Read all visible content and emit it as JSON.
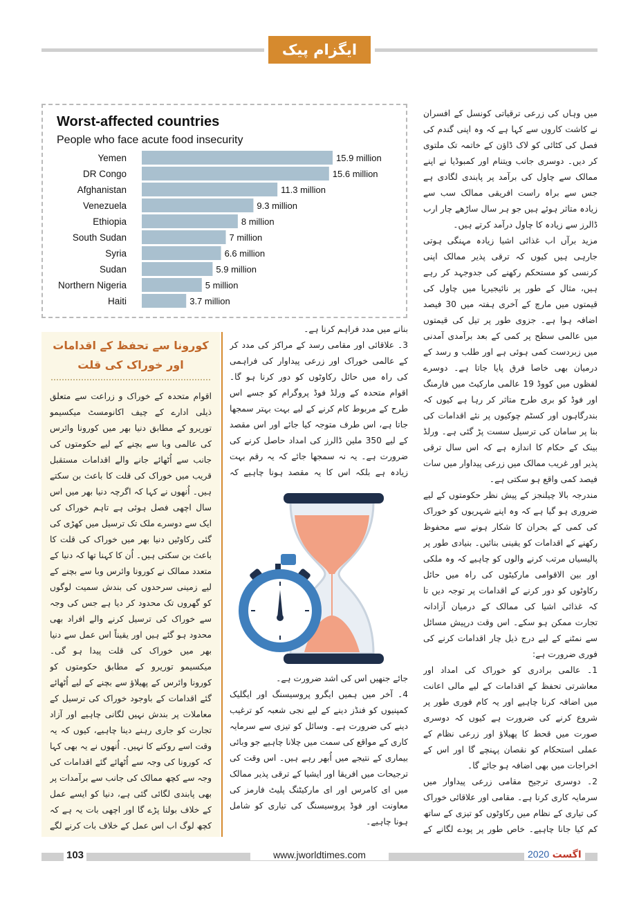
{
  "header": {
    "title": "ایگزام پیک"
  },
  "chart_data": {
    "type": "bar",
    "orientation": "horizontal",
    "title": "Worst-affected countries",
    "subtitle": "People who face acute food insecurity",
    "categories": [
      "Yemen",
      "DR Congo",
      "Afghanistan",
      "Venezuela",
      "Ethiopia",
      "South Sudan",
      "Syria",
      "Sudan",
      "Northern Nigeria",
      "Haiti"
    ],
    "values": [
      15.9,
      15.6,
      11.3,
      9.3,
      8,
      7,
      6.6,
      5.9,
      5,
      3.7
    ],
    "value_labels": [
      "15.9 million",
      "15.6 million",
      "11.3 million",
      "9.3 million",
      "8 million",
      "7 million",
      "6.6 million",
      "5.9 million",
      "5 million",
      "3.7 million"
    ],
    "color": "#a9c0cf"
  },
  "columns": {
    "right": [
      "میں وہاں کی زرعی ترقیاتی کونسل کے افسران نے کاشت کاروں سے کہا ہے کہ وہ اپنی گندم کی فصل کی کٹائی کو لاک ڈاؤن کے خاتمہ تک ملتوی کر دیں۔ دوسری جانب ویتنام اور کمبوڈیا نے اپنے ممالک سے چاول کی برآمد پر پابندی لگادی ہے جس سے براہ راست افریقی ممالک سب سے زیادہ متاثر ہوئے ہیں جو ہر سال ساڑھے چار ارب ڈالرز سے زیادہ کا چاول درآمد کرتے ہیں۔",
      "مزید برآں اب غذائی اشیا زیادہ مہنگی ہوتی جارہی ہیں کیوں کہ ترقی پذیر ممالک اپنی کرنسی کو مستحکم رکھنے کی جدوجہد کر رہے ہیں، مثال کے طور پر نائیجیریا میں چاول کی قیمتوں میں مارچ کے آخری ہفتہ میں 30 فیصد اضافہ ہوا ہے۔ جزوی طور پر تیل کی قیمتوں میں عالمی سطح پر کمی کے بعد برآمدی آمدنی میں زبردست کمی ہوئی ہے اور طلب و رسد کے درمیان بھی خاصا فرق پایا جاتا ہے۔ دوسرے لفظوں میں کووڈ 19 عالمی مارکیٹ میں فارمنگ اور فوڈ کو بری طرح متاثر کر رہا ہے کیوں کہ بندرگاہوں اور کسٹم چوکیوں پر نئے اقدامات کی بنا پر سامان کی ترسیل سست پڑ گئی ہے۔ ورلڈ بینک کے حکام کا اندازہ ہے کہ اس سال ترقی پذیر اور غریب ممالک میں زرعی پیداوار میں سات فیصد کمی واقع ہو سکتی ہے۔",
      "مندرجہ بالا چیلنجز کے پیش نظر حکومتوں کے لیے ضروری ہو گیا ہے کہ وہ اپنے شہریوں کو خوراک کی کمی کے بحران کا شکار ہونے سے محفوظ رکھنے کے اقدامات کو یقینی بنائیں۔ بنیادی طور پر پالیسیاں مرتب کرنے والوں کو چاہیے کہ وہ ملکی اور بین الاقوامی مارکیٹوں کی راہ میں حائل رکاوٹوں کو دور کرنے کے اقدامات پر توجہ دیں تا کہ غذائی اشیا کی ممالک کے درمیان آزادانہ تجارت ممکن ہو سکے۔ اس وقت درپیش مسائل سے نمٹنے کے لیے درج ذیل چار اقدامات کرنے کی فوری ضرورت ہے:",
      "1۔ عالمی برادری کو خوراک کی امداد اور معاشرتی تحفظ کے اقدامات کے لیے مالی اعانت میں اضافہ کرنا چاہیے اور یہ کام فوری طور پر شروع کرنے کی ضرورت ہے کیوں کہ دوسری صورت میں قحط کا پھیلاؤ اور زرعی نظام کے عملی استحکام کو نقصان پہنچے گا اور اس کے اخراجات میں بھی اضافہ ہو جائے گا۔",
      "2۔ دوسری ترجیح مقامی زرعی پیداوار میں سرمایہ کاری کرنا ہے۔ مقامی اور علاقائی خوراک کی تیاری کے نظام میں رکاوٹوں کو تیزی کے ساتھ کم کیا جانا چاہیے۔ خاص طور پر پودے لگانے کے موسم میں کھاد اور بیج کی تقسیم بہت ضروری ہے۔ اس شعبے میں سرمایہ کاری کا مقصد غریب ممالک کو تین ماہ کے لیے سٹریٹجک فوڈ سٹورز"
    ],
    "middle_top": [
      "بنانے میں مدد فراہم کرنا ہے۔",
      "3۔ علاقائی اور مقامی رسد کے مراکز کی مدد کر کے عالمی خوراک اور زرعی پیداوار کی فراہمی کی راہ میں حائل رکاوٹوں کو دور کرنا ہو گا۔ اقوام متحدہ کے ورلڈ فوڈ پروگرام کو جسے اس طرح کے مربوط کام کرنے کے لیے بہت بہتر سمجھا جاتا ہے، اس طرف متوجہ کیا جائے اور اس مقصد کے لیے 350 ملین ڈالرز کی امداد حاصل کرنے کی ضرورت ہے۔ یہ نہ سمجھا جائے کہ یہ رقم بہت زیادہ ہے بلکہ اس کا یہ مقصد ہونا چاہیے کہ خوراک جلد از جلد انھیں فراہم کی"
    ],
    "middle_bottom": [
      "جائے جنھیں اس کی اشد ضرورت ہے۔",
      "4۔ آخر میں ہمیں ایگرو پروسیسنگ اور ایگلیک کمپنیوں کو فنڈز دینے کے لیے نجی شعبہ کو ترغیب دینے کی ضرورت ہے۔ وسائل کو تیزی سے سرمایہ کاری کے مواقع کی سمت میں چلانا چاہیے جو وبائی بیماری کے نتیجے میں اُبھر رہے ہیں۔ اس وقت کی ترجیحات میں افریقا اور ایشیا کے ترقی پذیر ممالک میں ای کامرس اور ای مارکیٹنگ پلیٹ فارمز کی معاونت اور فوڈ پروسیسنگ کی تیاری کو شامل ہونا چاہیے۔"
    ]
  },
  "sidebar": {
    "title": [
      "کورونا سے تحفظ کے اقدامات",
      "اور خوراک کی قلت"
    ],
    "body": "اقوام متحدہ کے خوراک و زراعت سے متعلق ذیلی ادارے کے چیف اکانومسٹ میکسیمو توریرو کے مطابق دنیا بھر میں کورونا وائرس کی عالمی وبا سے بچنے کے لیے حکومتوں کی جانب سے اُٹھائے جانے والے اقدامات مستقبل قریب میں خوراک کی قلت کا باعث بن سکتے ہیں۔ اُنھوں نے کہا کہ اگرچہ دنیا بھر میں اس سال اچھی فصل ہوئی ہے تاہم خوراک کی ایک سے دوسرے ملک تک ترسیل میں کھڑی کی گئی رکاوٹیں دنیا بھر میں خوراک کی قلت کا باعث بن سکتی ہیں۔ اُن کا کہنا تھا کہ دنیا کے متعدد ممالک نے کورونا وائرس وبا سے بچنے کے لیے زمینی سرحدوں کی بندش سمیت لوگوں کو گھروں تک محدود کر دیا ہے جس کی وجہ سے خوراک کی ترسیل کرنے والے افراد بھی محدود ہو گئے ہیں اور یقیناً اس عمل سے دنیا بھر میں خوراک کی قلت پیدا ہو گی۔ میکسیمو توریرو کے مطابق حکومتوں کو کورونا وائرس کے پھیلاؤ سے بچنے کے لیے اُٹھائے گئے اقدامات کے باوجود خوراک کی ترسیل کے معاملات پر بندش نہیں لگانی چاہیے اور آزاد تجارت کو جاری رہنے دینا چاہیے، کیوں کہ یہ وقت اسے روکنے کا نہیں۔ اُنھوں نے یہ بھی کہا کہ کورونا کی وجہ سے اُٹھائے گئے اقدامات کی وجہ سے کچھ ممالک کی جانب سے برآمدات پر بھی پابندی لگائی گئی ہے، دنیا کو ایسے عمل کے خلاف بولنا پڑے گا اور اچھی بات یہ ہے کہ کچھ لوگ اب اس عمل کے خلاف بات کرنے لگے ہیں۔"
  },
  "footer": {
    "page": "103",
    "website": "www.jworldtimes.com",
    "month": "اگست",
    "year": "2020"
  }
}
